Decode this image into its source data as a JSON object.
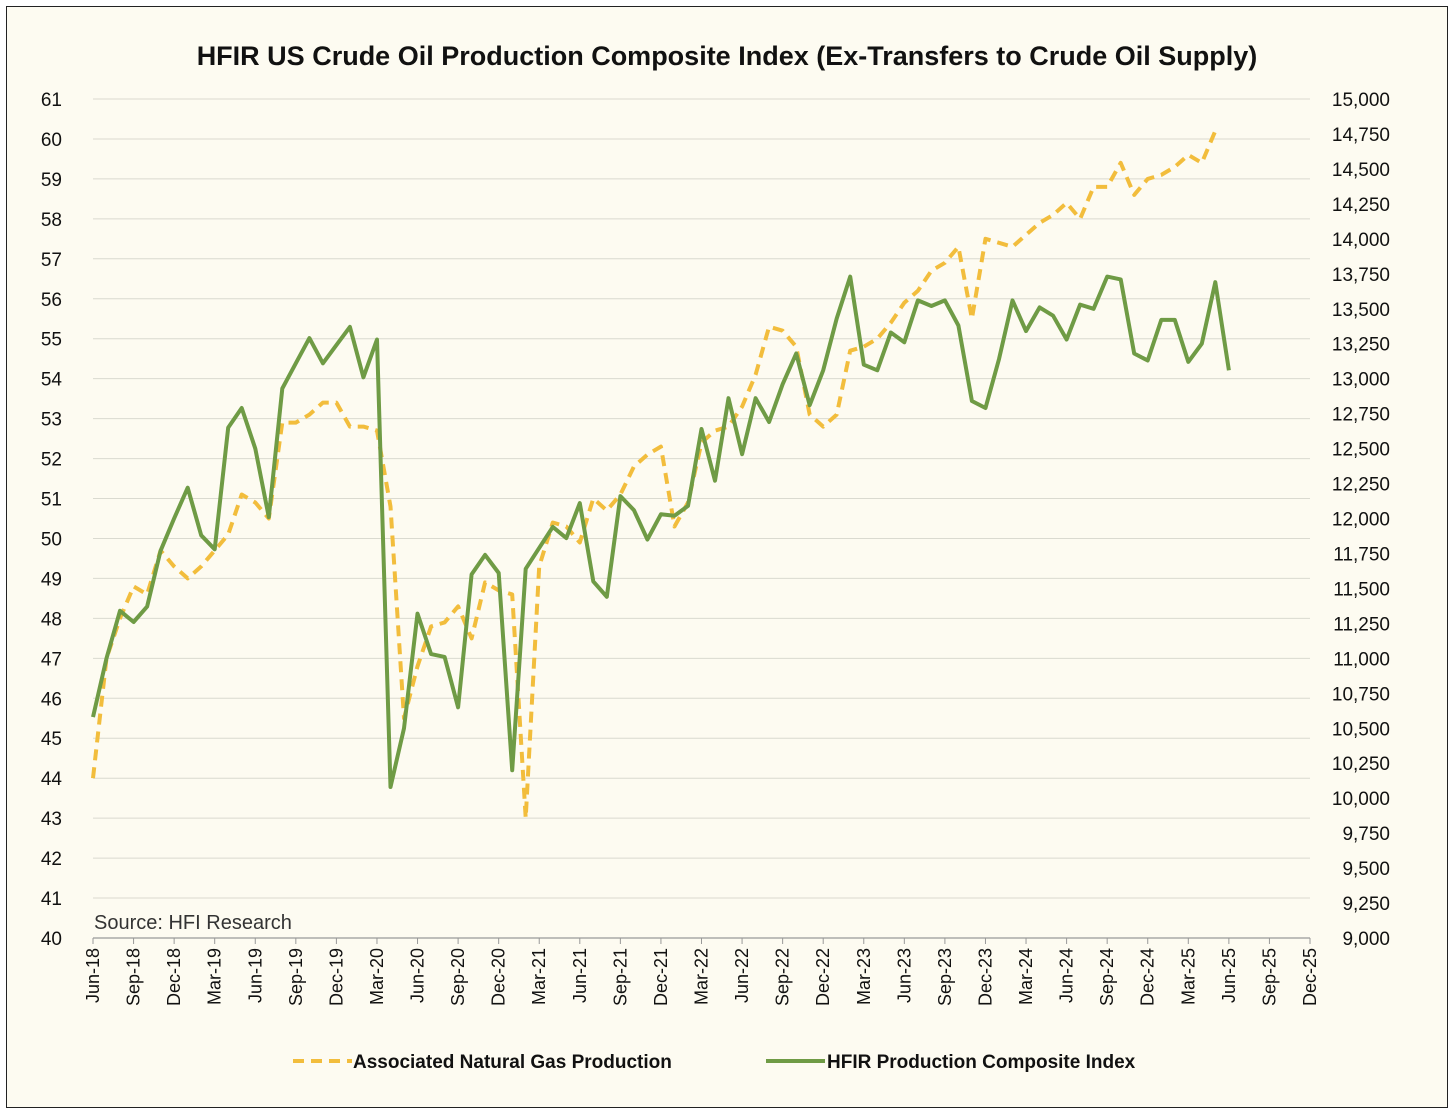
{
  "chart_data": {
    "type": "line",
    "title": "HFIR US Crude Oil Production Composite Index (Ex-Transfers to Crude Oil Supply)",
    "source": "Source: HFI Research",
    "left_axis": {
      "min": 40,
      "max": 61,
      "step": 1,
      "ticks": [
        "40",
        "41",
        "42",
        "43",
        "44",
        "45",
        "46",
        "47",
        "48",
        "49",
        "50",
        "51",
        "52",
        "53",
        "54",
        "55",
        "56",
        "57",
        "58",
        "59",
        "60",
        "61"
      ]
    },
    "right_axis": {
      "min": 9000,
      "max": 15000,
      "step": 250,
      "ticks": [
        "9,000",
        "9,250",
        "9,500",
        "9,750",
        "10,000",
        "10,250",
        "10,500",
        "10,750",
        "11,000",
        "11,250",
        "11,500",
        "11,750",
        "12,000",
        "12,250",
        "12,500",
        "12,750",
        "13,000",
        "13,250",
        "13,500",
        "13,750",
        "14,000",
        "14,250",
        "14,500",
        "14,750",
        "15,000"
      ]
    },
    "x_axis": {
      "start": "Jun-18",
      "months_span": 90,
      "tick_every_months": 3,
      "tick_labels": [
        "Jun-18",
        "Sep-18",
        "Dec-18",
        "Mar-19",
        "Jun-19",
        "Sep-19",
        "Dec-19",
        "Mar-20",
        "Jun-20",
        "Sep-20",
        "Dec-20",
        "Mar-21",
        "Jun-21",
        "Sep-21",
        "Dec-21",
        "Mar-22",
        "Jun-22",
        "Sep-22",
        "Dec-22",
        "Mar-23",
        "Jun-23",
        "Sep-23",
        "Dec-23",
        "Mar-24",
        "Jun-24",
        "Sep-24",
        "Dec-24",
        "Mar-25",
        "Jun-25",
        "Sep-25",
        "Dec-25"
      ]
    },
    "series": [
      {
        "name": "Associated Natural Gas Production",
        "axis": "left",
        "color": "#f2bd3c",
        "dash": true,
        "values": [
          44.0,
          47.0,
          48.0,
          48.8,
          48.6,
          49.7,
          49.3,
          49.0,
          49.3,
          49.7,
          50.1,
          51.1,
          50.9,
          50.5,
          52.9,
          52.9,
          53.1,
          53.4,
          53.4,
          52.8,
          52.8,
          52.7,
          50.8,
          45.5,
          46.8,
          47.8,
          47.9,
          48.3,
          47.5,
          48.9,
          48.7,
          48.6,
          43.0,
          49.3,
          50.4,
          50.3,
          49.9,
          51.0,
          50.7,
          51.1,
          51.8,
          52.1,
          52.3,
          50.3,
          50.9,
          52.4,
          52.7,
          52.8,
          53.3,
          54.1,
          55.3,
          55.2,
          54.8,
          53.1,
          52.8,
          53.1,
          54.7,
          54.8,
          55.0,
          55.4,
          55.9,
          56.2,
          56.7,
          56.9,
          57.3,
          55.5,
          57.5,
          57.4,
          57.3,
          57.6,
          57.9,
          58.1,
          58.4,
          58.0,
          58.8,
          58.8,
          59.4,
          58.6,
          59.0,
          59.1,
          59.3,
          59.6,
          59.4,
          60.2
        ]
      },
      {
        "name": "HFIR Production Composite Index",
        "axis": "right",
        "color": "#6f9b45",
        "dash": false,
        "values": [
          10580,
          11000,
          11340,
          11260,
          11370,
          11770,
          12000,
          12220,
          11880,
          11780,
          12650,
          12790,
          12500,
          12010,
          12930,
          13110,
          13290,
          13110,
          13240,
          13370,
          13010,
          13280,
          10080,
          10500,
          11320,
          11030,
          11010,
          10650,
          11600,
          11740,
          11610,
          10200,
          11640,
          11790,
          11940,
          11860,
          12110,
          11550,
          11440,
          12160,
          12060,
          11850,
          12030,
          12020,
          12090,
          12640,
          12270,
          12860,
          12460,
          12860,
          12690,
          12960,
          13180,
          12810,
          13060,
          13430,
          13730,
          13100,
          13060,
          13330,
          13260,
          13560,
          13520,
          13560,
          13380,
          12840,
          12790,
          13140,
          13560,
          13340,
          13510,
          13450,
          13280,
          13530,
          13500,
          13730,
          13710,
          13180,
          13130,
          13420,
          13420,
          13120,
          13250,
          13690,
          13060
        ]
      }
    ],
    "legend": {
      "position": "bottom"
    }
  }
}
